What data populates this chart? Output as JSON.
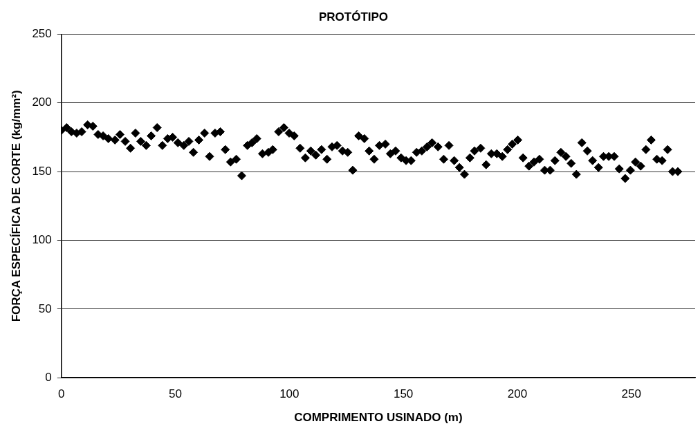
{
  "chart_data": {
    "type": "scatter",
    "title": "PROTÓTIPO",
    "xlabel": "COMPRIMENTO USINADO (m)",
    "ylabel": "FORÇA ESPECÍFICA DE CORTE (kg/mm²)",
    "x": [
      0,
      2.3,
      4.4,
      6.7,
      8.9,
      11.5,
      13.8,
      16.1,
      18.3,
      20.6,
      23.5,
      25.7,
      28,
      30.3,
      32.5,
      34.8,
      37.2,
      39.4,
      42,
      44.3,
      46.6,
      48.8,
      51.1,
      53.7,
      55.9,
      57.9,
      60.3,
      62.8,
      65,
      67.4,
      69.7,
      71.9,
      74.2,
      76.7,
      79.1,
      81.6,
      83.6,
      85.7,
      88.2,
      90.8,
      92.7,
      95.3,
      97.6,
      99.9,
      102.1,
      104.7,
      107,
      109.4,
      111.6,
      114.1,
      116.5,
      118.7,
      120.9,
      123.3,
      125.6,
      127.8,
      130.4,
      132.9,
      135,
      137.2,
      139.5,
      142.1,
      144.3,
      146.6,
      149,
      151.2,
      153.4,
      155.8,
      158.1,
      160.4,
      162.6,
      165.2,
      167.7,
      170,
      172.3,
      174.6,
      176.8,
      179.2,
      181.2,
      183.9,
      186.3,
      188.6,
      191,
      193.4,
      195.7,
      197.8,
      200.2,
      202.5,
      205.1,
      207.3,
      209.7,
      212,
      214.4,
      216.5,
      219.1,
      221.3,
      223.6,
      225.9,
      228.3,
      230.7,
      233,
      235.6,
      237.8,
      240.1,
      242.5,
      244.7,
      247.3,
      249.6,
      251.8,
      254.1,
      256.4,
      258.7,
      261.2,
      263.5,
      265.9,
      268.1,
      270.4
    ],
    "series": [
      {
        "color": "#000000",
        "values": [
          180,
          182,
          179,
          178,
          179,
          184,
          183,
          177,
          176,
          174,
          173,
          177,
          172,
          167,
          178,
          172,
          169,
          176,
          182,
          169,
          174,
          175,
          171,
          169,
          172,
          164,
          173,
          178,
          161,
          178,
          179,
          166,
          157,
          159,
          147,
          169,
          171,
          174,
          163,
          164,
          166,
          179,
          182,
          178,
          176,
          167,
          160,
          165,
          162,
          166,
          159,
          168,
          169,
          165,
          164,
          151,
          176,
          174,
          165,
          159,
          169,
          170,
          163,
          165,
          160,
          158,
          158,
          164,
          165,
          168,
          171,
          168,
          159,
          169,
          158,
          153,
          148,
          160,
          165,
          167,
          155,
          163,
          163,
          161,
          166,
          170,
          173,
          160,
          154,
          157,
          159,
          151,
          151,
          158,
          164,
          161,
          156,
          148,
          171,
          165,
          158,
          153,
          161,
          161,
          161,
          152,
          145,
          151,
          157,
          154,
          166,
          173,
          159,
          158,
          166,
          150,
          150
        ]
      }
    ],
    "xlim": [
      0,
      278
    ],
    "xticks": [
      0,
      50,
      100,
      150,
      200,
      250
    ],
    "ylim": [
      0,
      250
    ],
    "yticks": [
      0,
      50,
      100,
      150,
      200,
      250
    ],
    "grid": "y",
    "marker": "diamond"
  }
}
